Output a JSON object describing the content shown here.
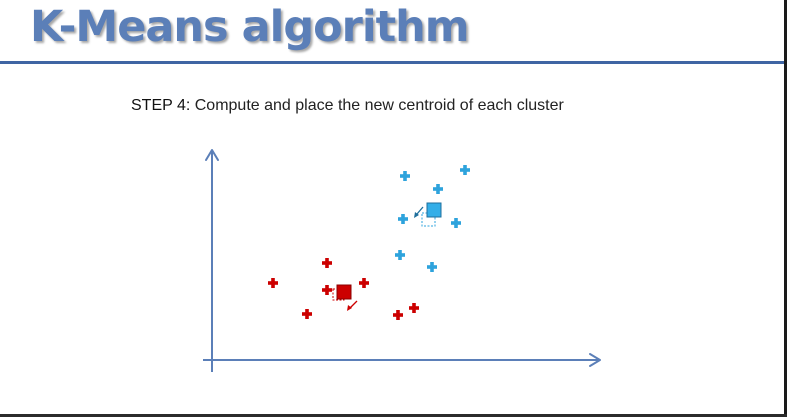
{
  "slide": {
    "title": "K-Means algorithm",
    "step_label": "STEP 4:",
    "step_text": " Compute and place the new centroid of each cluster"
  },
  "colors": {
    "title": "#5b7fb8",
    "axis": "#5b7fb8",
    "red_cluster": "#cc0000",
    "blue_cluster": "#2ea3dc"
  }
}
